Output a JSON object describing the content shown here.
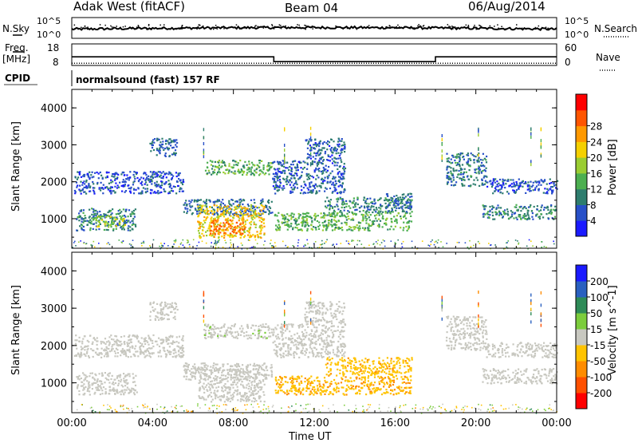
{
  "header": {
    "station": "Adak West (fitACF)",
    "beam": "Beam 04",
    "date": "06/Aug/2014",
    "nsky_label": "N.Sky",
    "nsearch_label": "N.Search",
    "freq_label": "Freq.",
    "freq_unit": "[MHz]",
    "nave_label": "Nave",
    "cpid_label": "CPID",
    "cpid_value": "normalsound (fast) 157 RF",
    "noise_ticks": [
      "10^5",
      "10^0"
    ],
    "freq_ticks": [
      "18",
      "8"
    ],
    "nave_ticks": [
      "60",
      "0"
    ]
  },
  "chart_data": [
    {
      "type": "heatmap",
      "panel": "power",
      "ylabel": "Slant Range [km]",
      "xlabel": "Time UT",
      "x_ticks": [
        "00:00",
        "04:00",
        "08:00",
        "12:00",
        "16:00",
        "20:00",
        "00:00"
      ],
      "y_ticks": [
        "1000",
        "2000",
        "3000",
        "4000"
      ],
      "ylim": [
        200,
        4500
      ],
      "xlim_hours": [
        0,
        24
      ],
      "colorbar": {
        "label": "Power [dB]",
        "ticks": [
          "4",
          "8",
          "12",
          "16",
          "20",
          "24",
          "28"
        ],
        "colors": [
          "#1a1aff",
          "#2850c8",
          "#2e7d6e",
          "#4caf50",
          "#9acd32",
          "#f5d000",
          "#ff9900",
          "#ff5500",
          "#ff0000"
        ]
      },
      "regions": [
        {
          "t0": 0.2,
          "t1": 3.2,
          "r0": 700,
          "r1": 1300,
          "level": 10
        },
        {
          "t0": 1.0,
          "t1": 2.6,
          "r0": 800,
          "r1": 1100,
          "level": 18
        },
        {
          "t0": 0.1,
          "t1": 5.5,
          "r0": 1700,
          "r1": 2300,
          "level": 6
        },
        {
          "t0": 3.8,
          "t1": 5.2,
          "r0": 2700,
          "r1": 3200,
          "level": 8
        },
        {
          "t0": 5.5,
          "t1": 9.9,
          "r0": 1100,
          "r1": 1550,
          "level": 8
        },
        {
          "t0": 6.5,
          "t1": 9.9,
          "r0": 2200,
          "r1": 2600,
          "level": 14
        },
        {
          "t0": 6.2,
          "t1": 9.5,
          "r0": 500,
          "r1": 1400,
          "level": 22
        },
        {
          "t0": 6.8,
          "t1": 8.6,
          "r0": 600,
          "r1": 1000,
          "level": 28
        },
        {
          "t0": 9.9,
          "t1": 13.5,
          "r0": 1700,
          "r1": 2600,
          "level": 7
        },
        {
          "t0": 11.5,
          "t1": 13.5,
          "r0": 2600,
          "r1": 3200,
          "level": 7
        },
        {
          "t0": 10.0,
          "t1": 16.8,
          "r0": 700,
          "r1": 1200,
          "level": 14
        },
        {
          "t0": 12.5,
          "t1": 16.8,
          "r0": 1200,
          "r1": 1600,
          "level": 10
        },
        {
          "t0": 15.5,
          "t1": 16.8,
          "r0": 1300,
          "r1": 1700,
          "level": 8
        },
        {
          "t0": 18.5,
          "t1": 20.5,
          "r0": 1900,
          "r1": 2800,
          "level": 9
        },
        {
          "t0": 20.3,
          "t1": 24.0,
          "r0": 1000,
          "r1": 1400,
          "level": 10
        },
        {
          "t0": 20.5,
          "t1": 24.0,
          "r0": 1700,
          "r1": 2100,
          "level": 6
        }
      ]
    },
    {
      "type": "heatmap",
      "panel": "velocity",
      "ylabel": "Slant Range [km]",
      "xlabel": "Time UT",
      "x_ticks": [
        "00:00",
        "04:00",
        "08:00",
        "12:00",
        "16:00",
        "20:00",
        "00:00"
      ],
      "y_ticks": [
        "1000",
        "2000",
        "3000",
        "4000"
      ],
      "ylim": [
        200,
        4500
      ],
      "xlim_hours": [
        0,
        24
      ],
      "colorbar": {
        "label": "Velocity [m s^-1]",
        "ticks": [
          "200",
          "100",
          "50",
          "15",
          "-15",
          "-50",
          "-100",
          "-200"
        ],
        "colors": [
          "#1a1aff",
          "#2a60c0",
          "#2e8b57",
          "#7ccd3c",
          "#c8c8c0",
          "#ffc300",
          "#ff8c00",
          "#ff5000",
          "#ff0000"
        ]
      },
      "regions": [
        {
          "t0": 0.2,
          "t1": 3.2,
          "r0": 700,
          "r1": 1300,
          "level": -3
        },
        {
          "t0": 0.1,
          "t1": 5.5,
          "r0": 1700,
          "r1": 2300,
          "level": 0
        },
        {
          "t0": 3.8,
          "t1": 5.2,
          "r0": 2700,
          "r1": 3200,
          "level": 0
        },
        {
          "t0": 5.5,
          "t1": 9.9,
          "r0": 1100,
          "r1": 1550,
          "level": 0
        },
        {
          "t0": 6.5,
          "t1": 9.9,
          "r0": 2200,
          "r1": 2600,
          "level": 5
        },
        {
          "t0": 6.2,
          "t1": 9.5,
          "r0": 500,
          "r1": 1400,
          "level": 0
        },
        {
          "t0": 9.9,
          "t1": 13.5,
          "r0": 1700,
          "r1": 2600,
          "level": 0
        },
        {
          "t0": 11.5,
          "t1": 13.5,
          "r0": 2600,
          "r1": 3200,
          "level": 0
        },
        {
          "t0": 10.0,
          "t1": 16.8,
          "r0": 700,
          "r1": 1200,
          "level": -40
        },
        {
          "t0": 12.5,
          "t1": 16.8,
          "r0": 1200,
          "r1": 1700,
          "level": -35
        },
        {
          "t0": 18.5,
          "t1": 20.5,
          "r0": 1900,
          "r1": 2800,
          "level": 0
        },
        {
          "t0": 20.3,
          "t1": 24.0,
          "r0": 1000,
          "r1": 1400,
          "level": 0
        },
        {
          "t0": 20.5,
          "t1": 24.0,
          "r0": 1700,
          "r1": 2100,
          "level": 0
        }
      ]
    }
  ],
  "frequency_steps": [
    {
      "t0": 0.0,
      "t1": 10.0,
      "mhz": 12.5
    },
    {
      "t0": 10.0,
      "t1": 18.0,
      "mhz": 10.0
    },
    {
      "t0": 18.0,
      "t1": 24.0,
      "mhz": 12.5
    }
  ],
  "nave_level": 7
}
